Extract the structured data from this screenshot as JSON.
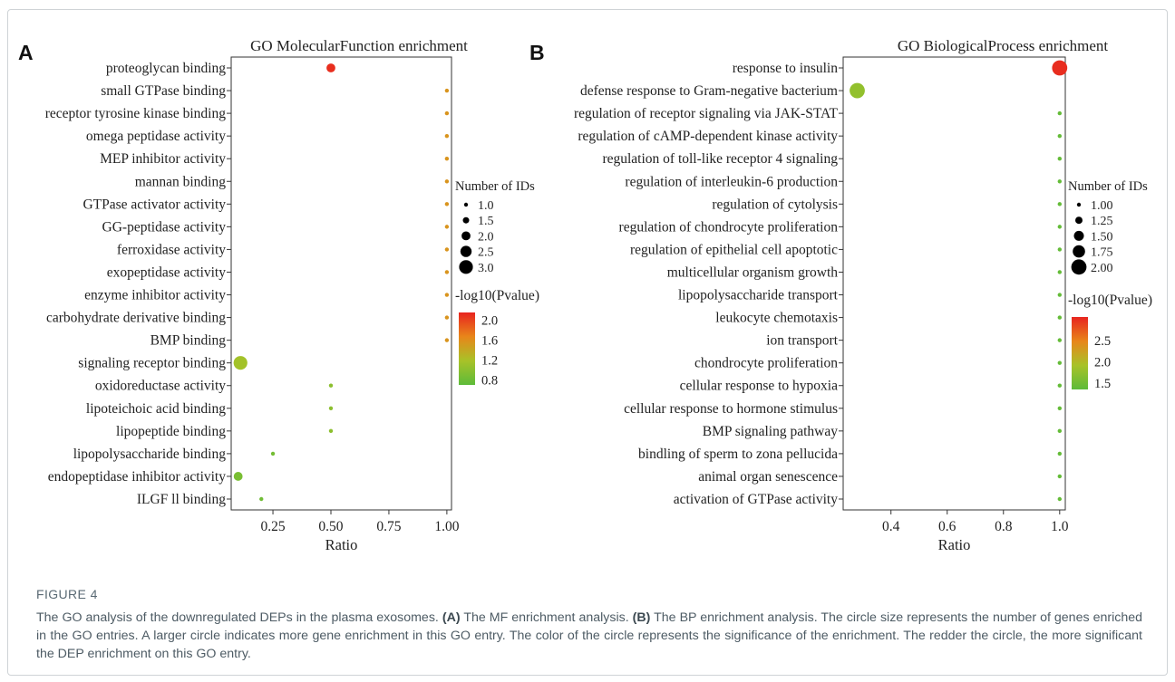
{
  "figure": {
    "caption_title": "FIGURE 4",
    "caption_parts": [
      {
        "text": "The GO analysis of the downregulated DEPs in the plasma exosomes. ",
        "bold": false
      },
      {
        "text": "(A)",
        "bold": true
      },
      {
        "text": " The MF enrichment analysis. ",
        "bold": false
      },
      {
        "text": "(B)",
        "bold": true
      },
      {
        "text": " The BP enrichment analysis. The circle size represents the number of genes enriched in the GO entries. A larger circle indicates more gene enrichment in this GO entry. The color of the circle represents the significance of the enrichment. The redder the circle, the more significant the DEP enrichment on this GO entry.",
        "bold": false
      }
    ]
  },
  "chart_data": [
    {
      "panel_label": "A",
      "type": "scatter",
      "title": "GO MolecularFunction enrichment",
      "xlabel": "Ratio",
      "xlim": [
        0.07,
        1.02
      ],
      "x_ticks": [
        0.25,
        0.5,
        0.75,
        1.0
      ],
      "x_tick_labels": [
        "0.25",
        "0.50",
        "0.75",
        "1.00"
      ],
      "categories": [
        "proteoglycan binding",
        "small GTPase binding",
        "receptor tyrosine kinase binding",
        "omega peptidase activity",
        "MEP inhibitor activity",
        "mannan binding",
        "GTPase activator activity",
        "GG-peptidase activity",
        "ferroxidase activity",
        "exopeptidase activity",
        "enzyme inhibitor activity",
        "carbohydrate derivative binding",
        "BMP binding",
        "signaling receptor binding",
        "oxidoreductase activity",
        "lipoteichoic acid binding",
        "lipopeptide binding",
        "lipopolysaccharide binding",
        "endopeptidase inhibitor activity",
        "ILGF ll binding"
      ],
      "ratio": [
        0.5,
        1.0,
        1.0,
        1.0,
        1.0,
        1.0,
        1.0,
        1.0,
        1.0,
        1.0,
        1.0,
        1.0,
        1.0,
        0.11,
        0.5,
        0.5,
        0.5,
        0.25,
        0.1,
        0.2
      ],
      "count": [
        2,
        1,
        1,
        1,
        1,
        1,
        1,
        1,
        1,
        1,
        1,
        1,
        1,
        3,
        1,
        1,
        1,
        1,
        2,
        1
      ],
      "neg_log10_pvalue": [
        2.1,
        1.55,
        1.55,
        1.55,
        1.55,
        1.55,
        1.55,
        1.55,
        1.55,
        1.55,
        1.55,
        1.55,
        1.55,
        1.15,
        1.0,
        1.0,
        1.0,
        0.85,
        0.88,
        0.82
      ],
      "size_legend": {
        "title": "Number of IDs",
        "values": [
          1.0,
          1.5,
          2.0,
          2.5,
          3.0
        ],
        "labels": [
          "1.0",
          "1.5",
          "2.0",
          "2.5",
          "3.0"
        ]
      },
      "color_legend": {
        "title": "-log10(Pvalue)",
        "min": 0.7,
        "max": 2.15,
        "ticks": [
          2.0,
          1.6,
          1.2,
          0.8
        ],
        "labels": [
          "2.0",
          "1.6",
          "1.2",
          "0.8"
        ],
        "colors": [
          "#e8241f",
          "#e8861a",
          "#a8c228",
          "#5dbb3a"
        ]
      }
    },
    {
      "panel_label": "B",
      "type": "scatter",
      "title": "GO BiologicalProcess enrichment",
      "xlabel": "Ratio",
      "xlim": [
        0.23,
        1.02
      ],
      "x_ticks": [
        0.4,
        0.6,
        0.8,
        1.0
      ],
      "x_tick_labels": [
        "0.4",
        "0.6",
        "0.8",
        "1.0"
      ],
      "categories": [
        "response to insulin",
        "defense response to Gram-negative bacterium",
        "regulation of receptor signaling via JAK-STAT",
        "regulation of cAMP-dependent kinase activity",
        "regulation of toll-like receptor 4 signaling",
        "regulation of interleukin-6 production",
        "regulation of cytolysis",
        "regulation of chondrocyte proliferation",
        "regulation of epithelial cell apoptotic",
        "multicellular organism growth",
        "lipopolysaccharide transport",
        "leukocyte chemotaxis",
        "ion transport",
        "chondrocyte proliferation",
        "cellular response to hypoxia",
        "cellular response to hormone stimulus",
        "BMP signaling pathway",
        "bindling of sperm to zona pellucida",
        "animal organ senescence",
        "activation of GTPase activity"
      ],
      "ratio": [
        1.0,
        0.28,
        1.0,
        1.0,
        1.0,
        1.0,
        1.0,
        1.0,
        1.0,
        1.0,
        1.0,
        1.0,
        1.0,
        1.0,
        1.0,
        1.0,
        1.0,
        1.0,
        1.0,
        1.0
      ],
      "count": [
        2,
        2,
        1,
        1,
        1,
        1,
        1,
        1,
        1,
        1,
        1,
        1,
        1,
        1,
        1,
        1,
        1,
        1,
        1,
        1
      ],
      "neg_log10_pvalue": [
        3.0,
        1.75,
        1.4,
        1.4,
        1.4,
        1.4,
        1.4,
        1.4,
        1.4,
        1.4,
        1.4,
        1.4,
        1.4,
        1.4,
        1.4,
        1.4,
        1.4,
        1.4,
        1.4,
        1.4
      ],
      "size_legend": {
        "title": "Number of IDs",
        "values": [
          1.0,
          1.25,
          1.5,
          1.75,
          2.0
        ],
        "labels": [
          "1.00",
          "1.25",
          "1.50",
          "1.75",
          "2.00"
        ]
      },
      "color_legend": {
        "title": "-log10(Pvalue)",
        "min": 1.35,
        "max": 3.05,
        "ticks": [
          2.5,
          2.0,
          1.5
        ],
        "labels": [
          "2.5",
          "2.0",
          "1.5"
        ],
        "colors": [
          "#e8241f",
          "#e8861a",
          "#a8c228",
          "#5dbb3a"
        ]
      }
    }
  ]
}
